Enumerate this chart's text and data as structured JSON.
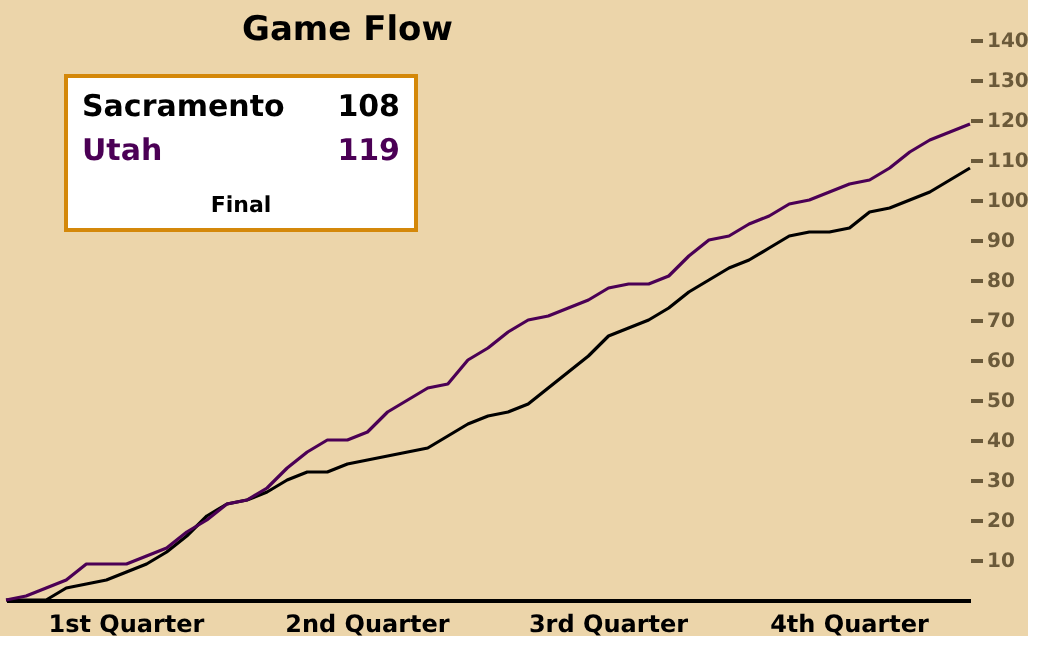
{
  "chart_data": {
    "type": "line",
    "title": "Game Flow",
    "categories": [
      null,
      null,
      null,
      null,
      null,
      null,
      null,
      null,
      null,
      null,
      null,
      null,
      null,
      null,
      null,
      null,
      null,
      null,
      null,
      null,
      null,
      null,
      null,
      null,
      null,
      null,
      null,
      null,
      null,
      null,
      null,
      null,
      null,
      null,
      null,
      null,
      null,
      null,
      null,
      null,
      null,
      null,
      null,
      null,
      null,
      null,
      null,
      null,
      null
    ],
    "tick_labels": "y",
    "ylim": [
      0,
      150
    ],
    "yticks": [
      10,
      20,
      30,
      40,
      50,
      60,
      70,
      80,
      90,
      100,
      110,
      120,
      130,
      140
    ],
    "annotations": [
      "108",
      "119",
      "Final",
      "1st Quarter",
      "2nd Quarter",
      "3rd Quarter",
      "4th Quarter"
    ],
    "series": [
      {
        "name": "Sacramento",
        "color": "#000000",
        "values": [
          0,
          0,
          0,
          3,
          4,
          5,
          7,
          9,
          12,
          16,
          21,
          24,
          25,
          27,
          30,
          32,
          32,
          34,
          35,
          36,
          37,
          38,
          41,
          44,
          46,
          47,
          49,
          53,
          57,
          61,
          66,
          68,
          70,
          73,
          77,
          80,
          83,
          85,
          88,
          91,
          92,
          92,
          93,
          97,
          98,
          100,
          102,
          105,
          108
        ]
      },
      {
        "name": "Utah",
        "color": "#4b0055",
        "values": [
          0,
          1,
          3,
          5,
          9,
          9,
          9,
          11,
          13,
          17,
          20,
          24,
          25,
          28,
          33,
          37,
          40,
          40,
          42,
          47,
          50,
          53,
          54,
          60,
          63,
          67,
          70,
          71,
          73,
          75,
          78,
          79,
          79,
          81,
          86,
          90,
          91,
          94,
          96,
          99,
          100,
          102,
          104,
          105,
          108,
          112,
          115,
          117,
          119
        ]
      }
    ]
  }
}
